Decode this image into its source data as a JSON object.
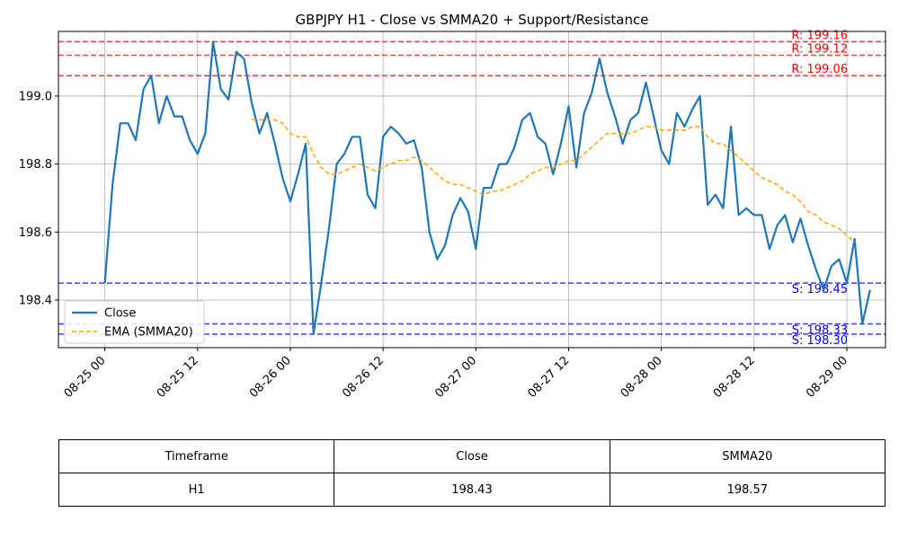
{
  "chart_data": {
    "type": "line",
    "title": "GBPJPY H1 - Close vs SMMA20 + Support/Resistance",
    "xlabel": "",
    "ylabel": "",
    "x_start": "08-25 00:00",
    "x_step_hours": 1,
    "xlim": [
      "08-24 18:00",
      "08-29 05:00"
    ],
    "ylim": [
      198.26,
      199.19
    ],
    "x_ticks": [
      "08-25 00",
      "08-25 12",
      "08-26 00",
      "08-26 12",
      "08-27 00",
      "08-27 12",
      "08-28 00",
      "08-28 12",
      "08-29 00"
    ],
    "y_ticks": [
      "198.4",
      "198.6",
      "198.8",
      "199.0"
    ],
    "grid": true,
    "legend_position": "lower-left",
    "series": [
      {
        "name": "Close",
        "color": "#1f77b4",
        "style": "solid",
        "values": [
          198.45,
          198.74,
          198.92,
          198.92,
          198.87,
          199.02,
          199.06,
          198.92,
          199.0,
          198.94,
          198.94,
          198.87,
          198.83,
          198.89,
          199.16,
          199.02,
          198.99,
          199.13,
          199.11,
          198.98,
          198.89,
          198.95,
          198.86,
          198.76,
          198.69,
          198.77,
          198.86,
          198.3,
          198.45,
          198.61,
          198.8,
          198.83,
          198.88,
          198.88,
          198.71,
          198.67,
          198.88,
          198.91,
          198.89,
          198.86,
          198.87,
          198.79,
          198.6,
          198.52,
          198.56,
          198.65,
          198.7,
          198.66,
          198.55,
          198.73,
          198.73,
          198.8,
          198.8,
          198.85,
          198.93,
          198.95,
          198.88,
          198.86,
          198.77,
          198.86,
          198.97,
          198.79,
          198.95,
          199.01,
          199.11,
          199.01,
          198.94,
          198.86,
          198.93,
          198.95,
          199.04,
          198.94,
          198.84,
          198.8,
          198.95,
          198.91,
          198.96,
          199.0,
          198.68,
          198.71,
          198.67,
          198.91,
          198.65,
          198.67,
          198.65,
          198.65,
          198.55,
          198.62,
          198.65,
          198.57,
          198.64,
          198.56,
          198.49,
          198.43,
          198.5,
          198.52,
          198.45,
          198.58,
          198.33,
          198.43
        ]
      },
      {
        "name": "EMA (SMMA20)",
        "color": "#ffa500",
        "style": "dashed",
        "start_index": 19,
        "values": [
          198.93,
          198.93,
          198.93,
          198.93,
          198.92,
          198.89,
          198.88,
          198.88,
          198.83,
          198.79,
          198.77,
          198.77,
          198.78,
          198.79,
          198.8,
          198.79,
          198.78,
          198.79,
          198.8,
          198.81,
          198.81,
          198.82,
          198.81,
          198.79,
          198.77,
          198.75,
          198.74,
          198.74,
          198.73,
          198.72,
          198.71,
          198.72,
          198.72,
          198.73,
          198.74,
          198.75,
          198.77,
          198.78,
          198.79,
          198.79,
          198.8,
          198.81,
          198.81,
          198.83,
          198.85,
          198.87,
          198.89,
          198.89,
          198.89,
          198.89,
          198.9,
          198.91,
          198.91,
          198.9,
          198.9,
          198.9,
          198.9,
          198.91,
          198.91,
          198.88,
          198.86,
          198.86,
          198.84,
          198.82,
          198.8,
          198.78,
          198.76,
          198.75,
          198.74,
          198.72,
          198.71,
          198.69,
          198.66,
          198.65,
          198.63,
          198.62,
          198.61,
          198.59,
          198.57
        ]
      }
    ],
    "resistance": [
      {
        "value": 199.16,
        "label": "R: 199.16",
        "color": "#ff0000"
      },
      {
        "value": 199.12,
        "label": "R: 199.12",
        "color": "#ff0000"
      },
      {
        "value": 199.06,
        "label": "R: 199.06",
        "color": "#ff0000"
      }
    ],
    "support": [
      {
        "value": 198.45,
        "label": "S: 198.45",
        "color": "#0000ff"
      },
      {
        "value": 198.33,
        "label": "S: 198.33",
        "color": "#0000ff"
      },
      {
        "value": 198.3,
        "label": "S: 198.30",
        "color": "#0000ff"
      }
    ]
  },
  "table": {
    "headers": [
      "Timeframe",
      "Close",
      "SMMA20"
    ],
    "row": [
      "H1",
      "198.43",
      "198.57"
    ]
  }
}
